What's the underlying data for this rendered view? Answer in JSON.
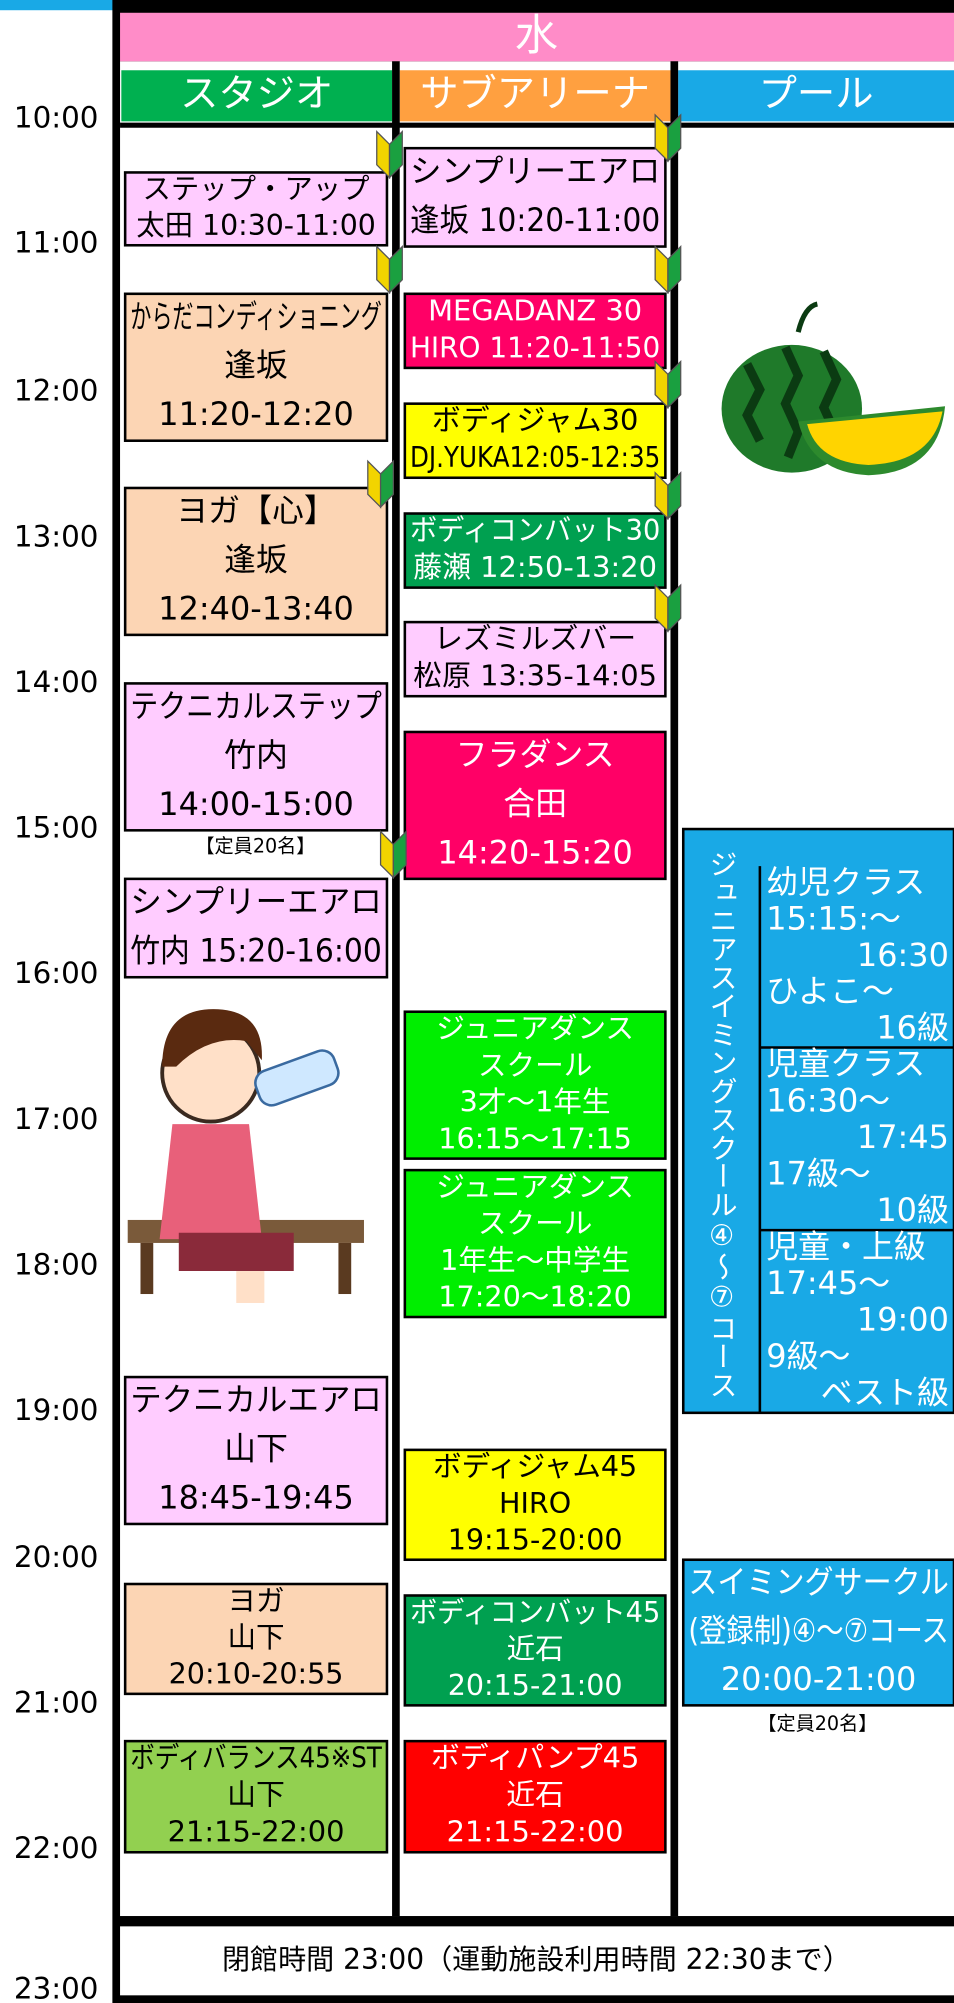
{
  "day": "水",
  "times": [
    "10:00",
    "11:00",
    "12:00",
    "13:00",
    "14:00",
    "15:00",
    "16:00",
    "17:00",
    "18:00",
    "19:00",
    "20:00",
    "21:00",
    "22:00",
    "23:00"
  ],
  "columns": [
    {
      "name": "スタジオ",
      "color": "#00b050",
      "classes": [
        {
          "color": "#ffccff",
          "lines": [
            "ステップ・アップ",
            "太田 10:30-11:00"
          ]
        },
        {
          "color": "#fcd5b4",
          "lines": [
            "からだコンディショニング",
            "逢坂",
            "11:20-12:20"
          ]
        },
        {
          "color": "#fcd5b4",
          "lines": [
            "ヨガ【心】",
            "逢坂",
            "12:40-13:40"
          ]
        },
        {
          "color": "#ffccff",
          "lines": [
            "テクニカルステップ",
            "竹内",
            "14:00-15:00"
          ]
        },
        {
          "color": "#ffccff",
          "lines": [
            "シンプリーエアロ",
            "竹内 15:20-16:00"
          ]
        },
        {
          "color": "#ffccff",
          "lines": [
            "テクニカルエアロ",
            "山下",
            "18:45-19:45"
          ]
        },
        {
          "color": "#fcd5b4",
          "lines": [
            "ヨガ",
            "山下",
            "20:10-20:55"
          ]
        },
        {
          "color": "#92d050",
          "lines": [
            "ボディバランス45※ST",
            "山下",
            "21:15-22:00"
          ]
        }
      ],
      "note": "【定員20名】"
    },
    {
      "name": "サブアリーナ",
      "color": "#ffa040",
      "classes": [
        {
          "color": "#ffccff",
          "lines": [
            "シンプリーエアロ",
            "逢坂 10:20-11:00"
          ]
        },
        {
          "color": "#ff0066",
          "lines": [
            "MEGADANZ 30",
            "HIRO 11:20-11:50"
          ]
        },
        {
          "color": "#ffff00",
          "lines": [
            "ボディジャム30",
            "DJ.YUKA12:05-12:35"
          ]
        },
        {
          "color": "#00a050",
          "lines": [
            "ボディコンバット30",
            "藤瀬 12:50-13:20"
          ]
        },
        {
          "color": "#ffccff",
          "lines": [
            "レズミルズバー",
            "松原 13:35-14:05"
          ]
        },
        {
          "color": "#ff0066",
          "lines": [
            "フラダンス",
            "合田",
            "14:20-15:20"
          ]
        },
        {
          "color": "#00ee00",
          "lines": [
            "ジュニアダンス",
            "スクール",
            "3才〜1年生",
            "16:15〜17:15"
          ]
        },
        {
          "color": "#00ee00",
          "lines": [
            "ジュニアダンス",
            "スクール",
            "1年生〜中学生",
            "17:20〜18:20"
          ]
        },
        {
          "color": "#ffff00",
          "lines": [
            "ボディジャム45",
            "HIRO",
            "19:15-20:00"
          ]
        },
        {
          "color": "#00a050",
          "lines": [
            "ボディコンバット45",
            "近石",
            "20:15-21:00"
          ]
        },
        {
          "color": "#ff0000",
          "lines": [
            "ボディパンプ45",
            "近石",
            "21:15-22:00"
          ]
        }
      ]
    },
    {
      "name": "プール",
      "color": "#19a9e6",
      "junior": {
        "title": "ジュニアスイミングスクール④〜⑦コース",
        "classes": [
          {
            "lines": [
              "幼児クラス",
              "15:15:〜",
              "16:30",
              "ひよこ〜",
              "16級"
            ]
          },
          {
            "lines": [
              "児童クラス",
              "16:30〜",
              "17:45",
              "17級〜",
              "10級"
            ]
          },
          {
            "lines": [
              "児童・上級",
              "17:45〜",
              "19:00",
              "9級〜",
              "ベスト級"
            ]
          }
        ]
      },
      "classes": [
        {
          "color": "#19a9e6",
          "lines": [
            "スイミングサークル",
            "(登録制)④〜⑦コース",
            "20:00-21:00"
          ]
        }
      ],
      "note": "【定員20名】"
    }
  ],
  "footer": "閉館時間 23:00（運動施設利用時間 22:30まで）"
}
